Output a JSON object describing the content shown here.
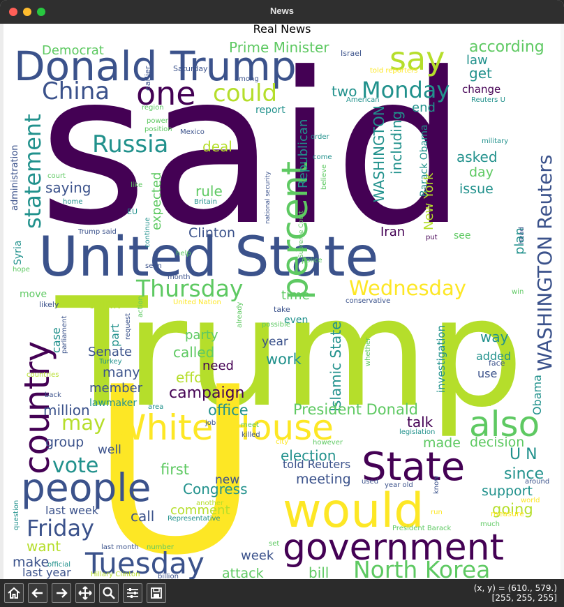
{
  "window": {
    "title": "News"
  },
  "figure": {
    "title": "Real News"
  },
  "status": {
    "coords": "(x, y) = (610., 579.)",
    "rgb": "[255, 255, 255]"
  },
  "toolbar": {
    "buttons": [
      "home-icon",
      "back-icon",
      "forward-icon",
      "pan-icon",
      "zoom-icon",
      "configure-icon",
      "save-icon"
    ]
  },
  "colors": {
    "dark_purple": "#440154",
    "indigo": "#3b528b",
    "teal": "#21918c",
    "green": "#5ec962",
    "yellow_green": "#b5de2b",
    "yellow": "#fde725"
  },
  "words": [
    "said",
    "Trump",
    "U",
    "United State",
    "Donald Trump",
    "White House",
    "would",
    "government",
    "people",
    "State",
    "country",
    "percent",
    "also",
    "Tuesday",
    "Friday",
    "one",
    "say",
    "China",
    "could",
    "Monday",
    "Russia",
    "statement",
    "WASHINGTON Reuters",
    "Thursday",
    "Wednesday",
    "North Korea",
    "vote",
    "may",
    "Prime Minister",
    "Democrat",
    "according",
    "law",
    "get",
    "change",
    "two",
    "end",
    "report",
    "Republican",
    "WASHINGTON",
    "including",
    "Barack Obama",
    "New York",
    "Islamic State",
    "Senate",
    "campaign",
    "office",
    "President Donald",
    "talk",
    "election",
    "meeting",
    "support",
    "going",
    "since",
    "U N",
    "decision",
    "made",
    "group",
    "well",
    "first",
    "Congress",
    "new",
    "comment",
    "call",
    "last week",
    "want",
    "make",
    "last year",
    "attack",
    "bill",
    "week",
    "told Reuters",
    "Iran",
    "Clinton",
    "expected",
    "saying",
    "rule",
    "deal",
    "asked",
    "day",
    "issue",
    "plan",
    "see",
    "million",
    "member",
    "many",
    "effort",
    "called",
    "party",
    "need",
    "work",
    "year",
    "time",
    "think",
    "part",
    "case",
    "way",
    "added",
    "use",
    "investigation",
    "Sunday",
    "Obama",
    "lawmaker",
    "Syria",
    "administration",
    "earlier",
    "Saturday",
    "Israel",
    "told reporters",
    "American",
    "Reuters U",
    "military",
    "power",
    "position",
    "Mexico",
    "order",
    "come",
    "believe",
    "like",
    "home",
    "court",
    "Britain",
    "EU",
    "continue",
    "national security",
    "Supreme Court",
    "police",
    "put",
    "Trump said",
    "help",
    "seen",
    "month",
    "hope",
    "likely",
    "move",
    "action",
    "request",
    "United Nation",
    "already",
    "conservative",
    "take",
    "possible",
    "even",
    "parliament",
    "Turkey",
    "whether",
    "countries",
    "back",
    "face",
    "head",
    "measure",
    "win",
    "visit",
    "area",
    "job",
    "meet",
    "killed",
    "city",
    "however",
    "legislation",
    "used",
    "year old",
    "know",
    "around",
    "world",
    "question",
    "another",
    "Representative",
    "run",
    "much",
    "President Barack",
    "last month",
    "number",
    "official",
    "set",
    "Hillary Clinton",
    "billion",
    "among",
    "region"
  ]
}
